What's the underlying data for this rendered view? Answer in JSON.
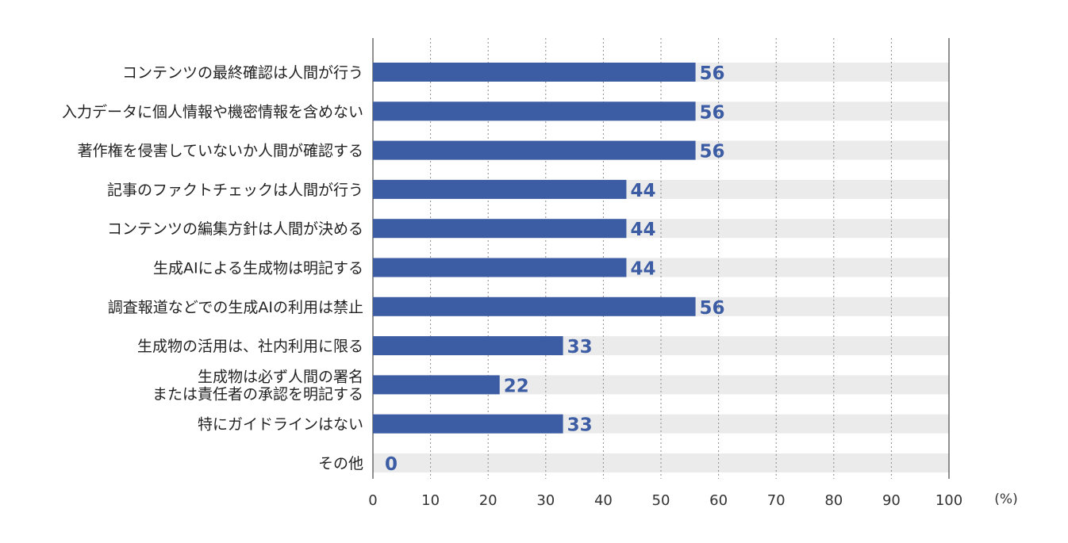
{
  "chart_data": {
    "type": "bar",
    "orientation": "horizontal",
    "title": "",
    "xlabel": "",
    "ylabel": "",
    "unit": "(%)",
    "xlim": [
      0,
      100
    ],
    "xticks": [
      0,
      10,
      20,
      30,
      40,
      50,
      60,
      70,
      80,
      90,
      100
    ],
    "grid": "vertical dotted",
    "categories": [
      [
        "コンテンツの最終確認は人間が行う"
      ],
      [
        "入力データに個人情報や機密情報を含めない"
      ],
      [
        "著作権を侵害していないか人間が確認する"
      ],
      [
        "記事のファクトチェックは人間が行う"
      ],
      [
        "コンテンツの編集方針は人間が決める"
      ],
      [
        "生成AIによる生成物は明記する"
      ],
      [
        "調査報道などでの生成AIの利用は禁止"
      ],
      [
        "生成物の活用は、社内利用に限る"
      ],
      [
        "生成物は必ず人間の署名",
        "または責任者の承認を明記する"
      ],
      [
        "特にガイドラインはない"
      ],
      [
        "その他"
      ]
    ],
    "values": [
      56,
      56,
      56,
      44,
      44,
      44,
      56,
      33,
      22,
      33,
      0
    ],
    "colors": {
      "bar": "#3c5ca4",
      "track": "#ebebeb",
      "value_label": "#3c5ca4",
      "grid": "#8a8a8a"
    }
  }
}
